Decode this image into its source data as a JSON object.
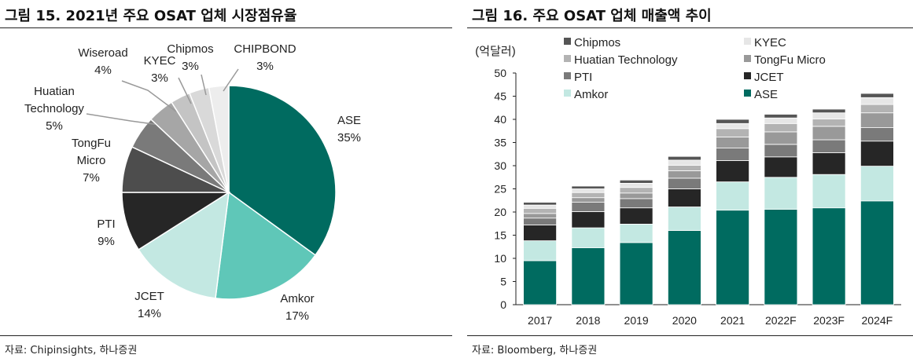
{
  "left": {
    "title": "그림 15. 2021년 주요 OSAT 업체 시장점유율",
    "source": "자료: Chipinsights, 하나증권"
  },
  "right": {
    "title": "그림 16. 주요 OSAT 업체 매출액 추이",
    "source": "자료: Bloomberg, 하나증권"
  },
  "chart_data": [
    {
      "type": "pie",
      "title": "2021년 주요 OSAT 업체 시장점유율",
      "slices": [
        {
          "name": "ASE",
          "label_lines": [
            "ASE"
          ],
          "value": 35,
          "value_label": "35%",
          "color": "#006b60"
        },
        {
          "name": "Amkor",
          "label_lines": [
            "Amkor"
          ],
          "value": 17,
          "value_label": "17%",
          "color": "#5fc7b8"
        },
        {
          "name": "JCET",
          "label_lines": [
            "JCET"
          ],
          "value": 14,
          "value_label": "14%",
          "color": "#c3e8e2"
        },
        {
          "name": "PTI",
          "label_lines": [
            "PTI"
          ],
          "value": 9,
          "value_label": "9%",
          "color": "#262626"
        },
        {
          "name": "TongFu Micro",
          "label_lines": [
            "TongFu",
            "Micro"
          ],
          "value": 7,
          "value_label": "7%",
          "color": "#4d4d4d"
        },
        {
          "name": "Huatian Technology",
          "label_lines": [
            "Huatian",
            "Technology"
          ],
          "value": 5,
          "value_label": "5%",
          "color": "#7a7a7a"
        },
        {
          "name": "Wiseroad",
          "label_lines": [
            "Wiseroad"
          ],
          "value": 4,
          "value_label": "4%",
          "color": "#a6a6a6"
        },
        {
          "name": "KYEC",
          "label_lines": [
            "KYEC"
          ],
          "value": 3,
          "value_label": "3%",
          "color": "#c4c4c4"
        },
        {
          "name": "Chipmos",
          "label_lines": [
            "Chipmos"
          ],
          "value": 3,
          "value_label": "3%",
          "color": "#d9d9d9"
        },
        {
          "name": "CHIPBOND",
          "label_lines": [
            "CHIPBOND"
          ],
          "value": 3,
          "value_label": "3%",
          "color": "#ededed"
        }
      ]
    },
    {
      "type": "bar",
      "stacked": true,
      "title": "주요 OSAT 업체 매출액 추이",
      "unit_label": "(억달러)",
      "categories": [
        "2017",
        "2018",
        "2019",
        "2020",
        "2021",
        "2022F",
        "2023F",
        "2024F"
      ],
      "ylim": [
        0,
        50
      ],
      "yticks": [
        0,
        5,
        10,
        15,
        20,
        25,
        30,
        35,
        40,
        45,
        50
      ],
      "legend_order": [
        "Chipmos",
        "KYEC",
        "Huatian Technology",
        "TongFu Micro",
        "PTI",
        "JCET",
        "Amkor",
        "ASE"
      ],
      "series": [
        {
          "name": "ASE",
          "color": "#006b60",
          "values": [
            9.5,
            12.3,
            13.4,
            16.0,
            20.4,
            20.6,
            20.9,
            22.4
          ]
        },
        {
          "name": "Amkor",
          "color": "#c3e8e2",
          "values": [
            4.3,
            4.3,
            4.0,
            5.1,
            6.1,
            6.9,
            7.2,
            7.5
          ]
        },
        {
          "name": "JCET",
          "color": "#262626",
          "values": [
            3.4,
            3.5,
            3.5,
            3.9,
            4.6,
            4.4,
            4.7,
            5.4
          ]
        },
        {
          "name": "PTI",
          "color": "#7a7a7a",
          "values": [
            1.5,
            2.0,
            2.0,
            2.3,
            2.7,
            2.7,
            2.8,
            2.9
          ]
        },
        {
          "name": "TongFu Micro",
          "color": "#999999",
          "values": [
            1.0,
            1.0,
            1.2,
            1.6,
            2.4,
            2.7,
            2.9,
            3.2
          ]
        },
        {
          "name": "Huatian Technology",
          "color": "#b3b3b3",
          "values": [
            1.1,
            1.1,
            1.2,
            1.2,
            1.8,
            1.8,
            1.6,
            1.8
          ]
        },
        {
          "name": "KYEC",
          "color": "#e6e6e6",
          "values": [
            0.7,
            0.8,
            0.9,
            1.1,
            1.1,
            1.2,
            1.3,
            1.5
          ]
        },
        {
          "name": "Chipmos",
          "color": "#555555",
          "values": [
            0.6,
            0.6,
            0.7,
            0.8,
            0.9,
            0.8,
            0.8,
            0.9
          ]
        }
      ]
    }
  ]
}
